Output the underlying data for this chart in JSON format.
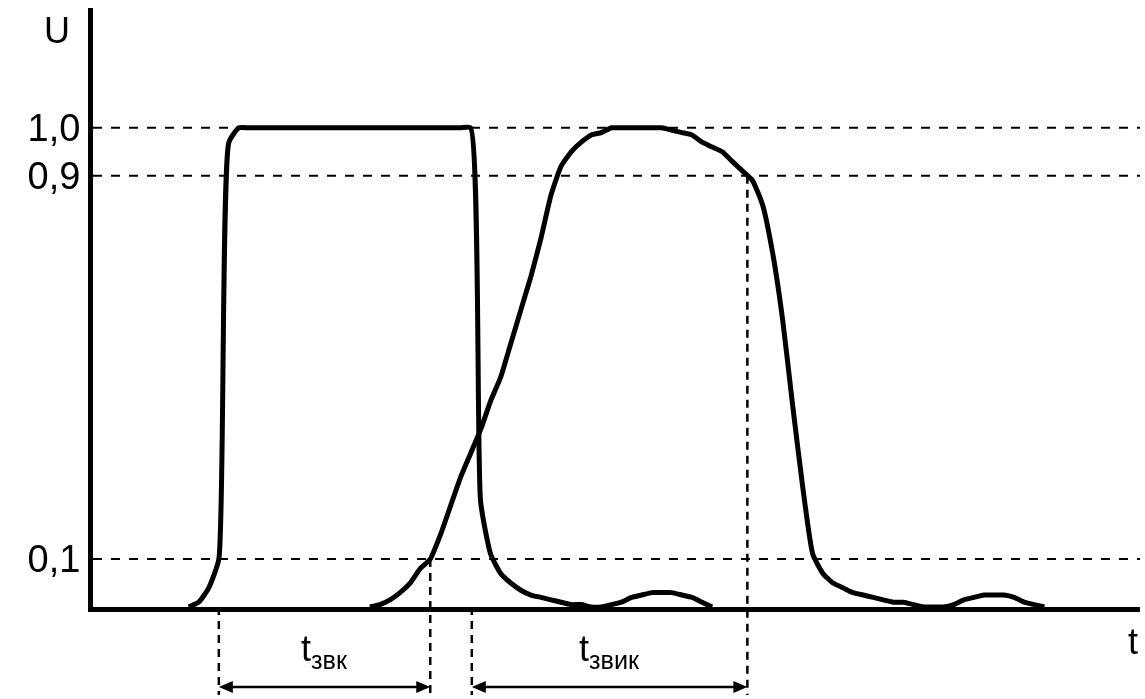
{
  "chart_data": {
    "type": "line",
    "xlabel": "t",
    "ylabel": "U",
    "categories": [
      null,
      null,
      null,
      null,
      null,
      null,
      null,
      null,
      null,
      null,
      null,
      null,
      null,
      null,
      null,
      null,
      null,
      null,
      null,
      null,
      null,
      null,
      null,
      null,
      null,
      null,
      null,
      null,
      null,
      null,
      null,
      null,
      null,
      null,
      null,
      null,
      null,
      null,
      null,
      null,
      null,
      null,
      null,
      null,
      null,
      null,
      null,
      null,
      null,
      null,
      null,
      null,
      null,
      null,
      null,
      null,
      null,
      null,
      null,
      null,
      null,
      null,
      null,
      null,
      null,
      null,
      null,
      null,
      null,
      null,
      null,
      null,
      null,
      null,
      null,
      null,
      null,
      null,
      null,
      null,
      null,
      null,
      null,
      null,
      null,
      null,
      null,
      null,
      null,
      null,
      null,
      null,
      null,
      null,
      null,
      null,
      null,
      null,
      null,
      null,
      null,
      null,
      null,
      null
    ],
    "series": [
      {
        "color": "#000000",
        "values": [
          null,
          null,
          null,
          null,
          null,
          null,
          null,
          null,
          null,
          0,
          0.01,
          0.04,
          0.1,
          0.97,
          1.0,
          1.0,
          1.0,
          1.0,
          1.0,
          1.0,
          1.0,
          1.0,
          1.0,
          1.0,
          1.0,
          1.0,
          1.0,
          1.0,
          1.0,
          1.0,
          1.0,
          1.0,
          1.0,
          1.0,
          1.0,
          1.0,
          1.0,
          1.0,
          0.22,
          0.11,
          0.07,
          0.05,
          0.035,
          0.025,
          0.02,
          0.015,
          0.01,
          0.005,
          0.005,
          0,
          0,
          0.005,
          0.01,
          0.02,
          0.025,
          0.03,
          0.03,
          0.03,
          0.025,
          0.02,
          0.01,
          0,
          null,
          null,
          null,
          null,
          null,
          null,
          null,
          null,
          null,
          null,
          null,
          null,
          null,
          null,
          null,
          null,
          null,
          null,
          null,
          null,
          null,
          null,
          null,
          null,
          null,
          null,
          null,
          null,
          null,
          null,
          null,
          null,
          null,
          null,
          null,
          null,
          null,
          null,
          null,
          null,
          null,
          null
        ]
      },
      {
        "color": "#000000",
        "values": [
          null,
          null,
          null,
          null,
          null,
          null,
          null,
          null,
          null,
          null,
          null,
          null,
          null,
          null,
          null,
          null,
          null,
          null,
          null,
          null,
          null,
          null,
          null,
          null,
          null,
          null,
          null,
          0,
          0.005,
          0.015,
          0.03,
          0.05,
          0.08,
          0.1,
          0.15,
          0.21,
          0.27,
          0.32,
          0.37,
          0.43,
          0.48,
          0.55,
          0.62,
          0.69,
          0.77,
          0.86,
          0.92,
          0.95,
          0.97,
          0.985,
          0.99,
          1.0,
          1.0,
          1.0,
          1.0,
          1.0,
          1.0,
          0.995,
          0.99,
          0.985,
          0.97,
          0.96,
          0.95,
          0.93,
          0.91,
          0.89,
          0.84,
          0.74,
          0.6,
          0.42,
          0.25,
          0.11,
          0.07,
          0.05,
          0.04,
          0.03,
          0.025,
          0.02,
          0.015,
          0.01,
          0.01,
          0.005,
          0,
          0,
          0,
          0.005,
          0.015,
          0.02,
          0.025,
          0.025,
          0.025,
          0.02,
          0.01,
          0.005,
          0,
          null,
          null,
          null,
          null,
          null,
          null,
          null,
          null,
          null
        ]
      }
    ],
    "ylim": [
      0,
      1.25
    ],
    "yticks": [
      {
        "value": 0.1,
        "label": "0,1"
      },
      {
        "value": 0.9,
        "label": "0,9"
      },
      {
        "value": 1.0,
        "label": "1,0"
      }
    ],
    "ref_lines": [
      {
        "axis": "y",
        "value": 1.0,
        "line_style": "dashed",
        "color": "#000000"
      },
      {
        "axis": "y",
        "value": 0.9,
        "line_style": "dashed",
        "color": "#000000"
      },
      {
        "axis": "y",
        "value": 0.1,
        "line_style": "dashed",
        "color": "#000000"
      }
    ],
    "annotations": [
      "t$_{звк}$",
      "t$_{звик}$"
    ],
    "grid": false,
    "marker": "none",
    "line_style": "solid"
  }
}
